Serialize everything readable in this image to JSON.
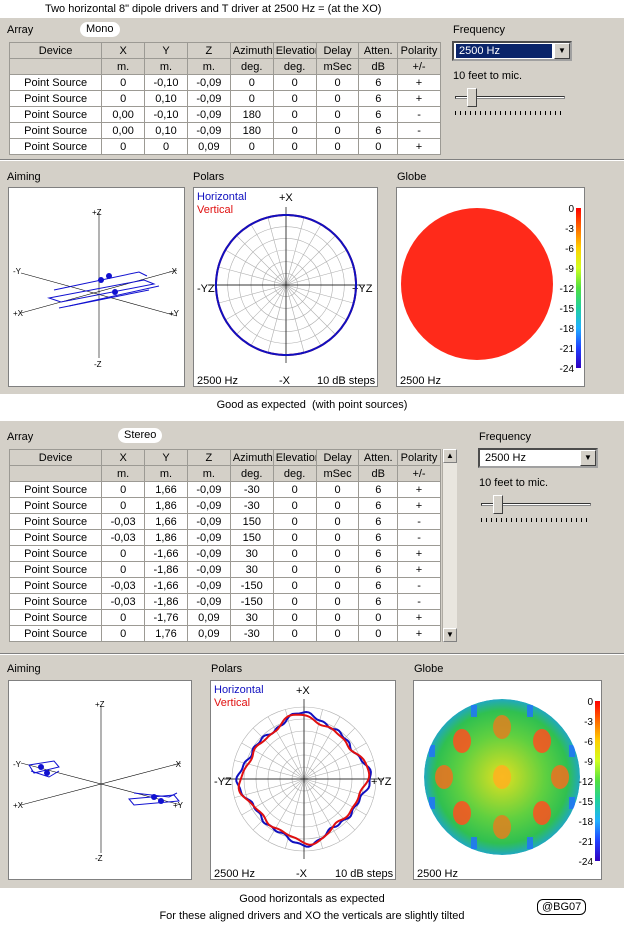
{
  "page": {
    "title": "Two horizontal 8\" dipole drivers and T driver at 2500 Hz     = (at the XO)",
    "caption_top": "Good as expected  (with point sources)",
    "caption_bottom_1": "Good horizontals as expected",
    "caption_bottom_2": "For these aligned drivers and XO the verticals are slightly tilted",
    "badge": "@BG07"
  },
  "headers": [
    "Device",
    "X",
    "Y",
    "Z",
    "Azimuth",
    "Elevation",
    "Delay",
    "Atten.",
    "Polarity"
  ],
  "units": [
    "",
    "m.",
    "m.",
    "m.",
    "deg.",
    "deg.",
    "mSec",
    "dB",
    "+/-"
  ],
  "panel1": {
    "array_label": "Array",
    "mode": "Mono",
    "frequency_label": "Frequency",
    "frequency": "2500 Hz",
    "distance_label": "10 feet to mic.",
    "rows": [
      [
        "Point Source",
        "0",
        "-0,10",
        "-0,09",
        "0",
        "0",
        "0",
        "6",
        "+"
      ],
      [
        "Point Source",
        "0",
        "0,10",
        "-0,09",
        "0",
        "0",
        "0",
        "6",
        "+"
      ],
      [
        "Point Source",
        "0,00",
        "-0,10",
        "-0,09",
        "180",
        "0",
        "0",
        "6",
        "-"
      ],
      [
        "Point Source",
        "0,00",
        "0,10",
        "-0,09",
        "180",
        "0",
        "0",
        "6",
        "-"
      ],
      [
        "Point Source",
        "0",
        "0",
        "0,09",
        "0",
        "0",
        "0",
        "0",
        "+"
      ]
    ],
    "aiming_label": "Aiming",
    "polars_label": "Polars",
    "globe_label": "Globe",
    "polar_freq": "2500 Hz",
    "polar_steps": "10 dB steps",
    "globe_freq": "2500 Hz"
  },
  "panel2": {
    "array_label": "Array",
    "mode": "Stereo",
    "frequency_label": "Frequency",
    "frequency": "2500 Hz",
    "distance_label": "10 feet to mic.",
    "rows": [
      [
        "Point Source",
        "0",
        "1,66",
        "-0,09",
        "-30",
        "0",
        "0",
        "6",
        "+"
      ],
      [
        "Point Source",
        "0",
        "1,86",
        "-0,09",
        "-30",
        "0",
        "0",
        "6",
        "+"
      ],
      [
        "Point Source",
        "-0,03",
        "1,66",
        "-0,09",
        "150",
        "0",
        "0",
        "6",
        "-"
      ],
      [
        "Point Source",
        "-0,03",
        "1,86",
        "-0,09",
        "150",
        "0",
        "0",
        "6",
        "-"
      ],
      [
        "Point Source",
        "0",
        "-1,66",
        "-0,09",
        "30",
        "0",
        "0",
        "6",
        "+"
      ],
      [
        "Point Source",
        "0",
        "-1,86",
        "-0,09",
        "30",
        "0",
        "0",
        "6",
        "+"
      ],
      [
        "Point Source",
        "-0,03",
        "-1,66",
        "-0,09",
        "-150",
        "0",
        "0",
        "6",
        "-"
      ],
      [
        "Point Source",
        "-0,03",
        "-1,86",
        "-0,09",
        "-150",
        "0",
        "0",
        "6",
        "-"
      ],
      [
        "Point Source",
        "0",
        "-1,76",
        "0,09",
        "30",
        "0",
        "0",
        "0",
        "+"
      ],
      [
        "Point Source",
        "0",
        "1,76",
        "0,09",
        "-30",
        "0",
        "0",
        "0",
        "+"
      ]
    ],
    "aiming_label": "Aiming",
    "polars_label": "Polars",
    "globe_label": "Globe",
    "polar_freq": "2500 Hz",
    "polar_steps": "10 dB steps",
    "globe_freq": "2500 Hz"
  },
  "axes": {
    "pz": "+Z",
    "nz": "-Z",
    "ny": "-Y",
    "nx": "-X",
    "px": "+X",
    "py": "+Y",
    "yz_left": "-YZ",
    "yz_right": "+YZ",
    "polar_top": "+X",
    "polar_bottom": "-X"
  },
  "legend": {
    "horizontal": "Horizontal",
    "vertical": "Vertical"
  },
  "colorbar_ticks": [
    "0",
    "-3",
    "-6",
    "-9",
    "-12",
    "-15",
    "-18",
    "-21",
    "-24"
  ],
  "colors": {
    "horizontal": "#1010c0",
    "vertical": "#e01010",
    "panel": "#d4d0c8",
    "selection": "#0a246a"
  }
}
